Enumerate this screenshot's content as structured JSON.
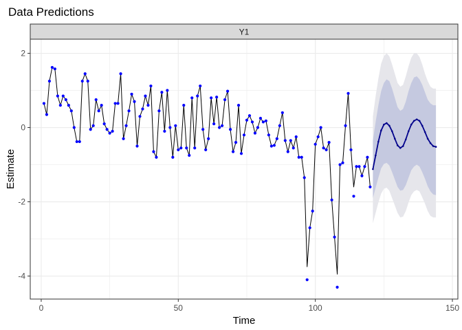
{
  "chart_data": {
    "type": "line",
    "title": "Data Predictions",
    "facet": "Y1",
    "xlabel": "Time",
    "ylabel": "Estimate",
    "xlim": [
      -4,
      152
    ],
    "ylim": [
      -4.62,
      2.38
    ],
    "xticks": [
      0,
      50,
      100,
      150
    ],
    "yticks": [
      -4,
      -2,
      0,
      2
    ],
    "grid": true,
    "legend": "none",
    "colors": {
      "points": "#0000ff",
      "line": "#000000",
      "forecast_line": "#00008b",
      "inner_band": "#c5c9e0",
      "outer_band": "#e6e6eb",
      "strip_fill": "#d9d9d9",
      "grid": "#ebebeb"
    },
    "observed": {
      "x": [
        1,
        2,
        3,
        4,
        5,
        6,
        7,
        8,
        9,
        10,
        11,
        12,
        13,
        14,
        15,
        16,
        17,
        18,
        19,
        20,
        21,
        22,
        23,
        24,
        25,
        26,
        27,
        28,
        29,
        30,
        31,
        32,
        33,
        34,
        35,
        36,
        37,
        38,
        39,
        40,
        41,
        42,
        43,
        44,
        45,
        46,
        47,
        48,
        49,
        50,
        51,
        52,
        53,
        54,
        55,
        56,
        57,
        58,
        59,
        60,
        61,
        62,
        63,
        64,
        65,
        66,
        67,
        68,
        69,
        70,
        71,
        72,
        73,
        74,
        75,
        76,
        77,
        78,
        79,
        80,
        81,
        82,
        83,
        84,
        85,
        86,
        87,
        88,
        89,
        90,
        91,
        92,
        93,
        94,
        95,
        96,
        97,
        98,
        99,
        100,
        101,
        102,
        103,
        104,
        105,
        106,
        107,
        108,
        109,
        110,
        111,
        112,
        113,
        114,
        115,
        116,
        117,
        118,
        119,
        120
      ],
      "fitted": [
        0.65,
        0.35,
        1.25,
        1.62,
        1.58,
        0.85,
        0.6,
        0.85,
        0.75,
        0.6,
        0.45,
        0.0,
        -0.38,
        -0.38,
        1.25,
        1.45,
        1.25,
        -0.05,
        0.05,
        0.75,
        0.45,
        0.6,
        0.1,
        -0.05,
        -0.15,
        -0.1,
        0.65,
        0.65,
        1.45,
        -0.3,
        0.05,
        0.45,
        0.9,
        0.7,
        -0.5,
        0.3,
        0.5,
        0.85,
        0.6,
        1.12,
        -0.65,
        -0.8,
        0.45,
        0.95,
        -0.1,
        1.0,
        0.0,
        -0.8,
        0.05,
        -0.6,
        -0.55,
        0.6,
        -0.55,
        -0.75,
        0.8,
        -0.55,
        0.85,
        1.12,
        -0.05,
        -0.6,
        -0.3,
        0.8,
        0.1,
        0.82,
        0.0,
        0.05,
        0.75,
        0.98,
        -0.05,
        -0.65,
        -0.4,
        0.6,
        -0.7,
        -0.2,
        0.2,
        0.32,
        0.15,
        -0.15,
        0.0,
        0.25,
        0.15,
        0.18,
        -0.2,
        -0.5,
        -0.48,
        -0.3,
        0.05,
        0.4,
        -0.35,
        -0.65,
        -0.35,
        -0.55,
        -0.25,
        -0.8,
        -0.8,
        -1.35,
        -3.75,
        -2.7,
        -2.25,
        -0.45,
        -0.25,
        0.0,
        -0.55,
        -0.6,
        -0.4,
        -1.95,
        -2.95,
        -3.95,
        -1.0,
        -0.95,
        0.05,
        0.92,
        -0.6,
        -1.6,
        -1.05,
        -1.05,
        -1.3,
        -1.05,
        -0.8,
        -1.6
      ],
      "points": [
        0.65,
        0.35,
        1.25,
        1.62,
        1.58,
        0.85,
        0.6,
        0.85,
        0.75,
        0.6,
        0.45,
        0.0,
        -0.38,
        -0.38,
        1.25,
        1.45,
        1.25,
        -0.05,
        0.05,
        0.75,
        0.45,
        0.6,
        0.1,
        -0.05,
        -0.15,
        -0.1,
        0.65,
        0.65,
        1.45,
        -0.3,
        0.05,
        0.45,
        0.9,
        0.7,
        -0.5,
        0.3,
        0.5,
        0.85,
        0.6,
        1.12,
        -0.65,
        -0.8,
        0.45,
        0.95,
        -0.1,
        1.0,
        0.0,
        -0.8,
        0.05,
        -0.6,
        -0.55,
        0.6,
        -0.55,
        -0.75,
        0.8,
        -0.55,
        0.85,
        1.12,
        -0.05,
        -0.6,
        -0.3,
        0.8,
        0.1,
        0.82,
        0.0,
        0.05,
        0.75,
        0.98,
        -0.05,
        -0.65,
        -0.4,
        0.6,
        -0.7,
        -0.2,
        0.2,
        0.32,
        0.15,
        -0.15,
        0.0,
        0.25,
        0.15,
        0.18,
        -0.2,
        -0.5,
        -0.48,
        -0.3,
        0.05,
        0.4,
        -0.35,
        -0.65,
        -0.35,
        -0.55,
        -0.25,
        -0.8,
        -0.8,
        -1.35,
        -4.1,
        -2.7,
        -2.25,
        -0.45,
        -0.25,
        0.0,
        -0.55,
        -0.6,
        -0.4,
        -1.95,
        -2.95,
        -4.3,
        -1.0,
        -0.95,
        0.05,
        0.92,
        -0.6,
        -1.85,
        -1.05,
        -1.05,
        -1.3,
        -1.05,
        -0.8,
        -1.6
      ]
    },
    "forecast": {
      "x": [
        121,
        122,
        123,
        124,
        125,
        126,
        127,
        128,
        129,
        130,
        131,
        132,
        133,
        134,
        135,
        136,
        137,
        138,
        139,
        140,
        141,
        142,
        143,
        144
      ],
      "mean": [
        -1.12,
        -0.75,
        -0.38,
        -0.08,
        0.08,
        0.12,
        0.05,
        -0.1,
        -0.3,
        -0.48,
        -0.55,
        -0.5,
        -0.32,
        -0.1,
        0.08,
        0.18,
        0.22,
        0.18,
        0.05,
        -0.12,
        -0.3,
        -0.42,
        -0.5,
        -0.52
      ],
      "lower_80": [
        -1.9,
        -1.62,
        -1.35,
        -1.1,
        -0.98,
        -0.95,
        -1.02,
        -1.2,
        -1.4,
        -1.6,
        -1.7,
        -1.68,
        -1.55,
        -1.35,
        -1.15,
        -1.05,
        -1.0,
        -1.05,
        -1.2,
        -1.38,
        -1.58,
        -1.72,
        -1.8,
        -1.82
      ],
      "upper_80": [
        -0.35,
        0.15,
        0.6,
        0.98,
        1.2,
        1.3,
        1.25,
        1.05,
        0.8,
        0.55,
        0.45,
        0.5,
        0.7,
        0.98,
        1.2,
        1.35,
        1.38,
        1.3,
        1.15,
        0.95,
        0.75,
        0.65,
        0.6,
        0.6
      ],
      "lower_95": [
        -2.58,
        -2.3,
        -2.02,
        -1.78,
        -1.65,
        -1.62,
        -1.7,
        -1.9,
        -2.1,
        -2.3,
        -2.42,
        -2.4,
        -2.25,
        -2.02,
        -1.82,
        -1.72,
        -1.68,
        -1.72,
        -1.88,
        -2.05,
        -2.25,
        -2.38,
        -2.42,
        -2.42
      ],
      "upper_95": [
        0.3,
        0.85,
        1.32,
        1.72,
        1.92,
        2.0,
        1.92,
        1.7,
        1.45,
        1.2,
        1.1,
        1.15,
        1.38,
        1.65,
        1.88,
        2.0,
        2.0,
        1.9,
        1.7,
        1.45,
        1.25,
        1.1,
        1.05,
        1.05
      ]
    }
  }
}
